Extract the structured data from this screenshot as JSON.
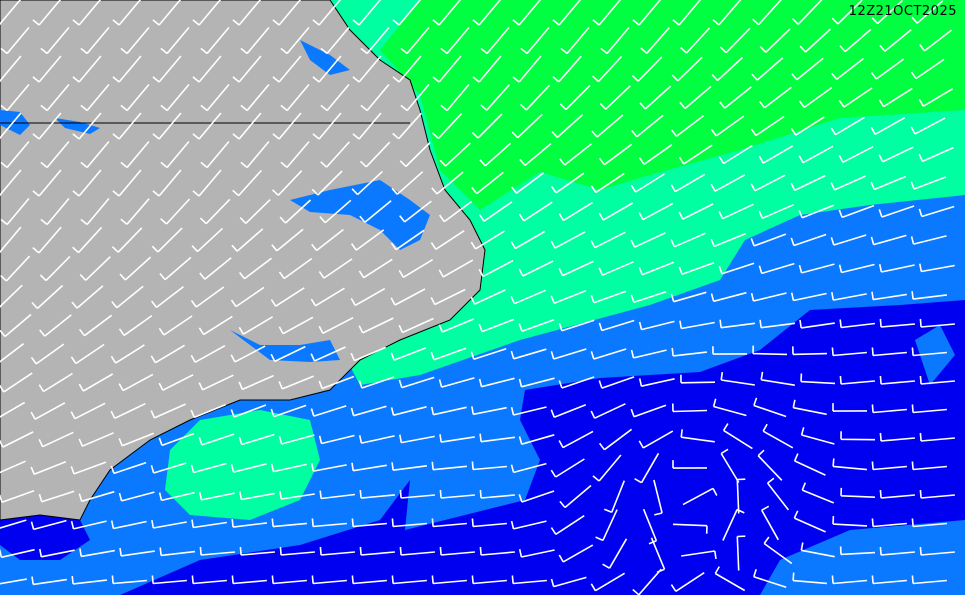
{
  "map": {
    "timestamp": "12Z21OCT2025",
    "colors": {
      "land": "#b4b4b4",
      "water_inland": "#0a78ff",
      "level_1": "#0000f0",
      "level_2": "#0a78ff",
      "level_3": "#00ffa0",
      "level_4": "#00ff40",
      "barbs": "#ffffff",
      "border": "#000000"
    },
    "features": [
      "wind-barbs",
      "state-border",
      "coastline"
    ]
  }
}
